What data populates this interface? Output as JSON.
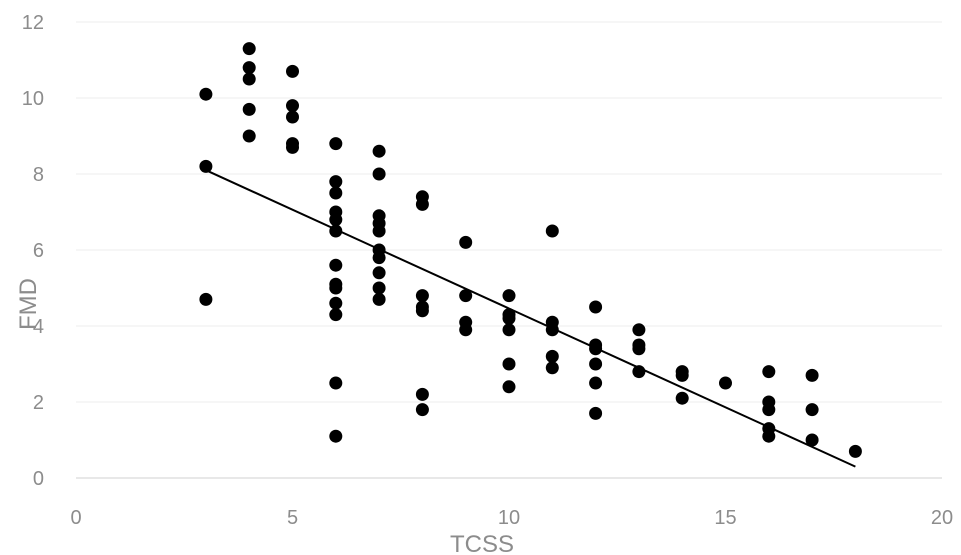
{
  "chart_data": {
    "type": "scatter",
    "title": "",
    "xlabel": "TCSS",
    "ylabel": "FMD",
    "xlim": [
      0,
      20
    ],
    "ylim": [
      0,
      12
    ],
    "xticks": [
      0,
      5,
      10,
      15,
      20
    ],
    "yticks": [
      0,
      2,
      4,
      6,
      8,
      10,
      12
    ],
    "grid": "horizontal",
    "legend": "none",
    "marker_color": "#000000",
    "gridline_color": "#f0f0f0",
    "axis_text_color": "#8c8c8c",
    "series": [
      {
        "points": [
          [
            3,
            10.1
          ],
          [
            3,
            8.2
          ],
          [
            3,
            4.7
          ],
          [
            4,
            11.3
          ],
          [
            4,
            10.8
          ],
          [
            4,
            10.5
          ],
          [
            4,
            9.7
          ],
          [
            4,
            9.0
          ],
          [
            5,
            10.7
          ],
          [
            5,
            9.8
          ],
          [
            5,
            9.5
          ],
          [
            5,
            8.8
          ],
          [
            5,
            8.7
          ],
          [
            6,
            8.8
          ],
          [
            6,
            7.8
          ],
          [
            6,
            7.5
          ],
          [
            6,
            7.0
          ],
          [
            6,
            6.8
          ],
          [
            6,
            6.5
          ],
          [
            6,
            5.6
          ],
          [
            6,
            5.1
          ],
          [
            6,
            5.0
          ],
          [
            6,
            4.6
          ],
          [
            6,
            4.3
          ],
          [
            6,
            2.5
          ],
          [
            6,
            1.1
          ],
          [
            7,
            8.6
          ],
          [
            7,
            8.0
          ],
          [
            7,
            6.9
          ],
          [
            7,
            6.7
          ],
          [
            7,
            6.5
          ],
          [
            7,
            6.0
          ],
          [
            7,
            5.8
          ],
          [
            7,
            5.4
          ],
          [
            7,
            5.0
          ],
          [
            7,
            4.7
          ],
          [
            8,
            7.4
          ],
          [
            8,
            7.2
          ],
          [
            8,
            4.8
          ],
          [
            8,
            4.5
          ],
          [
            8,
            4.4
          ],
          [
            8,
            2.2
          ],
          [
            8,
            1.8
          ],
          [
            9,
            6.2
          ],
          [
            9,
            4.8
          ],
          [
            9,
            4.1
          ],
          [
            9,
            3.9
          ],
          [
            10,
            4.8
          ],
          [
            10,
            4.3
          ],
          [
            10,
            4.2
          ],
          [
            10,
            3.9
          ],
          [
            10,
            3.0
          ],
          [
            10,
            2.4
          ],
          [
            11,
            6.5
          ],
          [
            11,
            4.1
          ],
          [
            11,
            3.9
          ],
          [
            11,
            3.2
          ],
          [
            11,
            2.9
          ],
          [
            12,
            4.5
          ],
          [
            12,
            3.5
          ],
          [
            12,
            3.4
          ],
          [
            12,
            3.0
          ],
          [
            12,
            2.5
          ],
          [
            12,
            1.7
          ],
          [
            13,
            3.9
          ],
          [
            13,
            3.5
          ],
          [
            13,
            3.4
          ],
          [
            13,
            2.8
          ],
          [
            14,
            2.8
          ],
          [
            14,
            2.7
          ],
          [
            14,
            2.1
          ],
          [
            15,
            2.5
          ],
          [
            16,
            2.8
          ],
          [
            16,
            2.0
          ],
          [
            16,
            1.8
          ],
          [
            16,
            1.3
          ],
          [
            16,
            1.1
          ],
          [
            17,
            2.7
          ],
          [
            17,
            1.8
          ],
          [
            17,
            1.0
          ],
          [
            18,
            0.7
          ]
        ]
      }
    ],
    "trendline": {
      "type": "linear",
      "x_start": 3,
      "y_start": 8.1,
      "x_end": 18,
      "y_end": 0.3,
      "color": "#000000"
    }
  }
}
